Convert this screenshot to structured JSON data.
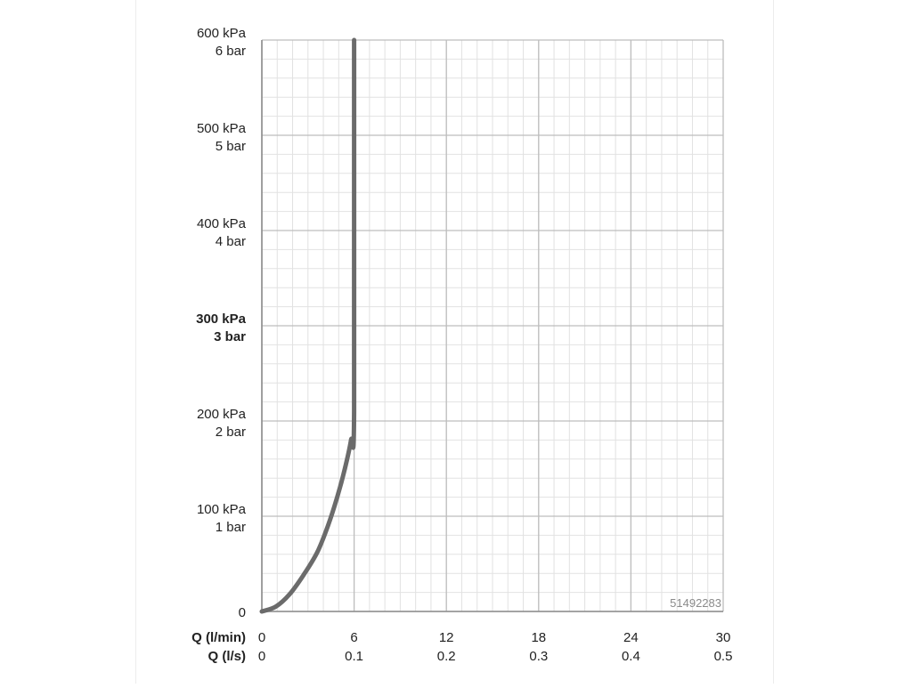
{
  "chart_data": {
    "type": "line",
    "x_axis_rows": [
      {
        "label": "Q (l/min)",
        "ticks": [
          "0",
          "6",
          "12",
          "18",
          "24",
          "30"
        ]
      },
      {
        "label": "Q (l/s)",
        "ticks": [
          "0",
          "0.1",
          "0.2",
          "0.3",
          "0.4",
          "0.5"
        ]
      }
    ],
    "y_axis_ticks": [
      {
        "value": 0,
        "lines": [
          "0"
        ],
        "bold": false
      },
      {
        "value": 100,
        "lines": [
          "100 kPa",
          "1 bar"
        ],
        "bold": false
      },
      {
        "value": 200,
        "lines": [
          "200 kPa",
          "2 bar"
        ],
        "bold": false
      },
      {
        "value": 300,
        "lines": [
          "300 kPa",
          "3 bar"
        ],
        "bold": true
      },
      {
        "value": 400,
        "lines": [
          "400 kPa",
          "4 bar"
        ],
        "bold": false
      },
      {
        "value": 500,
        "lines": [
          "500 kPa",
          "5 bar"
        ],
        "bold": false
      },
      {
        "value": 600,
        "lines": [
          "600 kPa",
          "6 bar"
        ],
        "bold": false
      }
    ],
    "xlim": [
      0,
      30
    ],
    "ylim": [
      0,
      600
    ],
    "x_unit": "l/min",
    "y_unit": "kPa",
    "grid": true,
    "series": [
      {
        "x": [
          0,
          0.9,
          1.8,
          2.7,
          3.6,
          4.3,
          4.9,
          5.4,
          5.8,
          6.0,
          6.0
        ],
        "y": [
          0,
          5,
          18,
          38,
          62,
          90,
          120,
          150,
          180,
          210,
          600
        ],
        "color": "#6b6b6b"
      }
    ],
    "annotation": "51492283"
  }
}
